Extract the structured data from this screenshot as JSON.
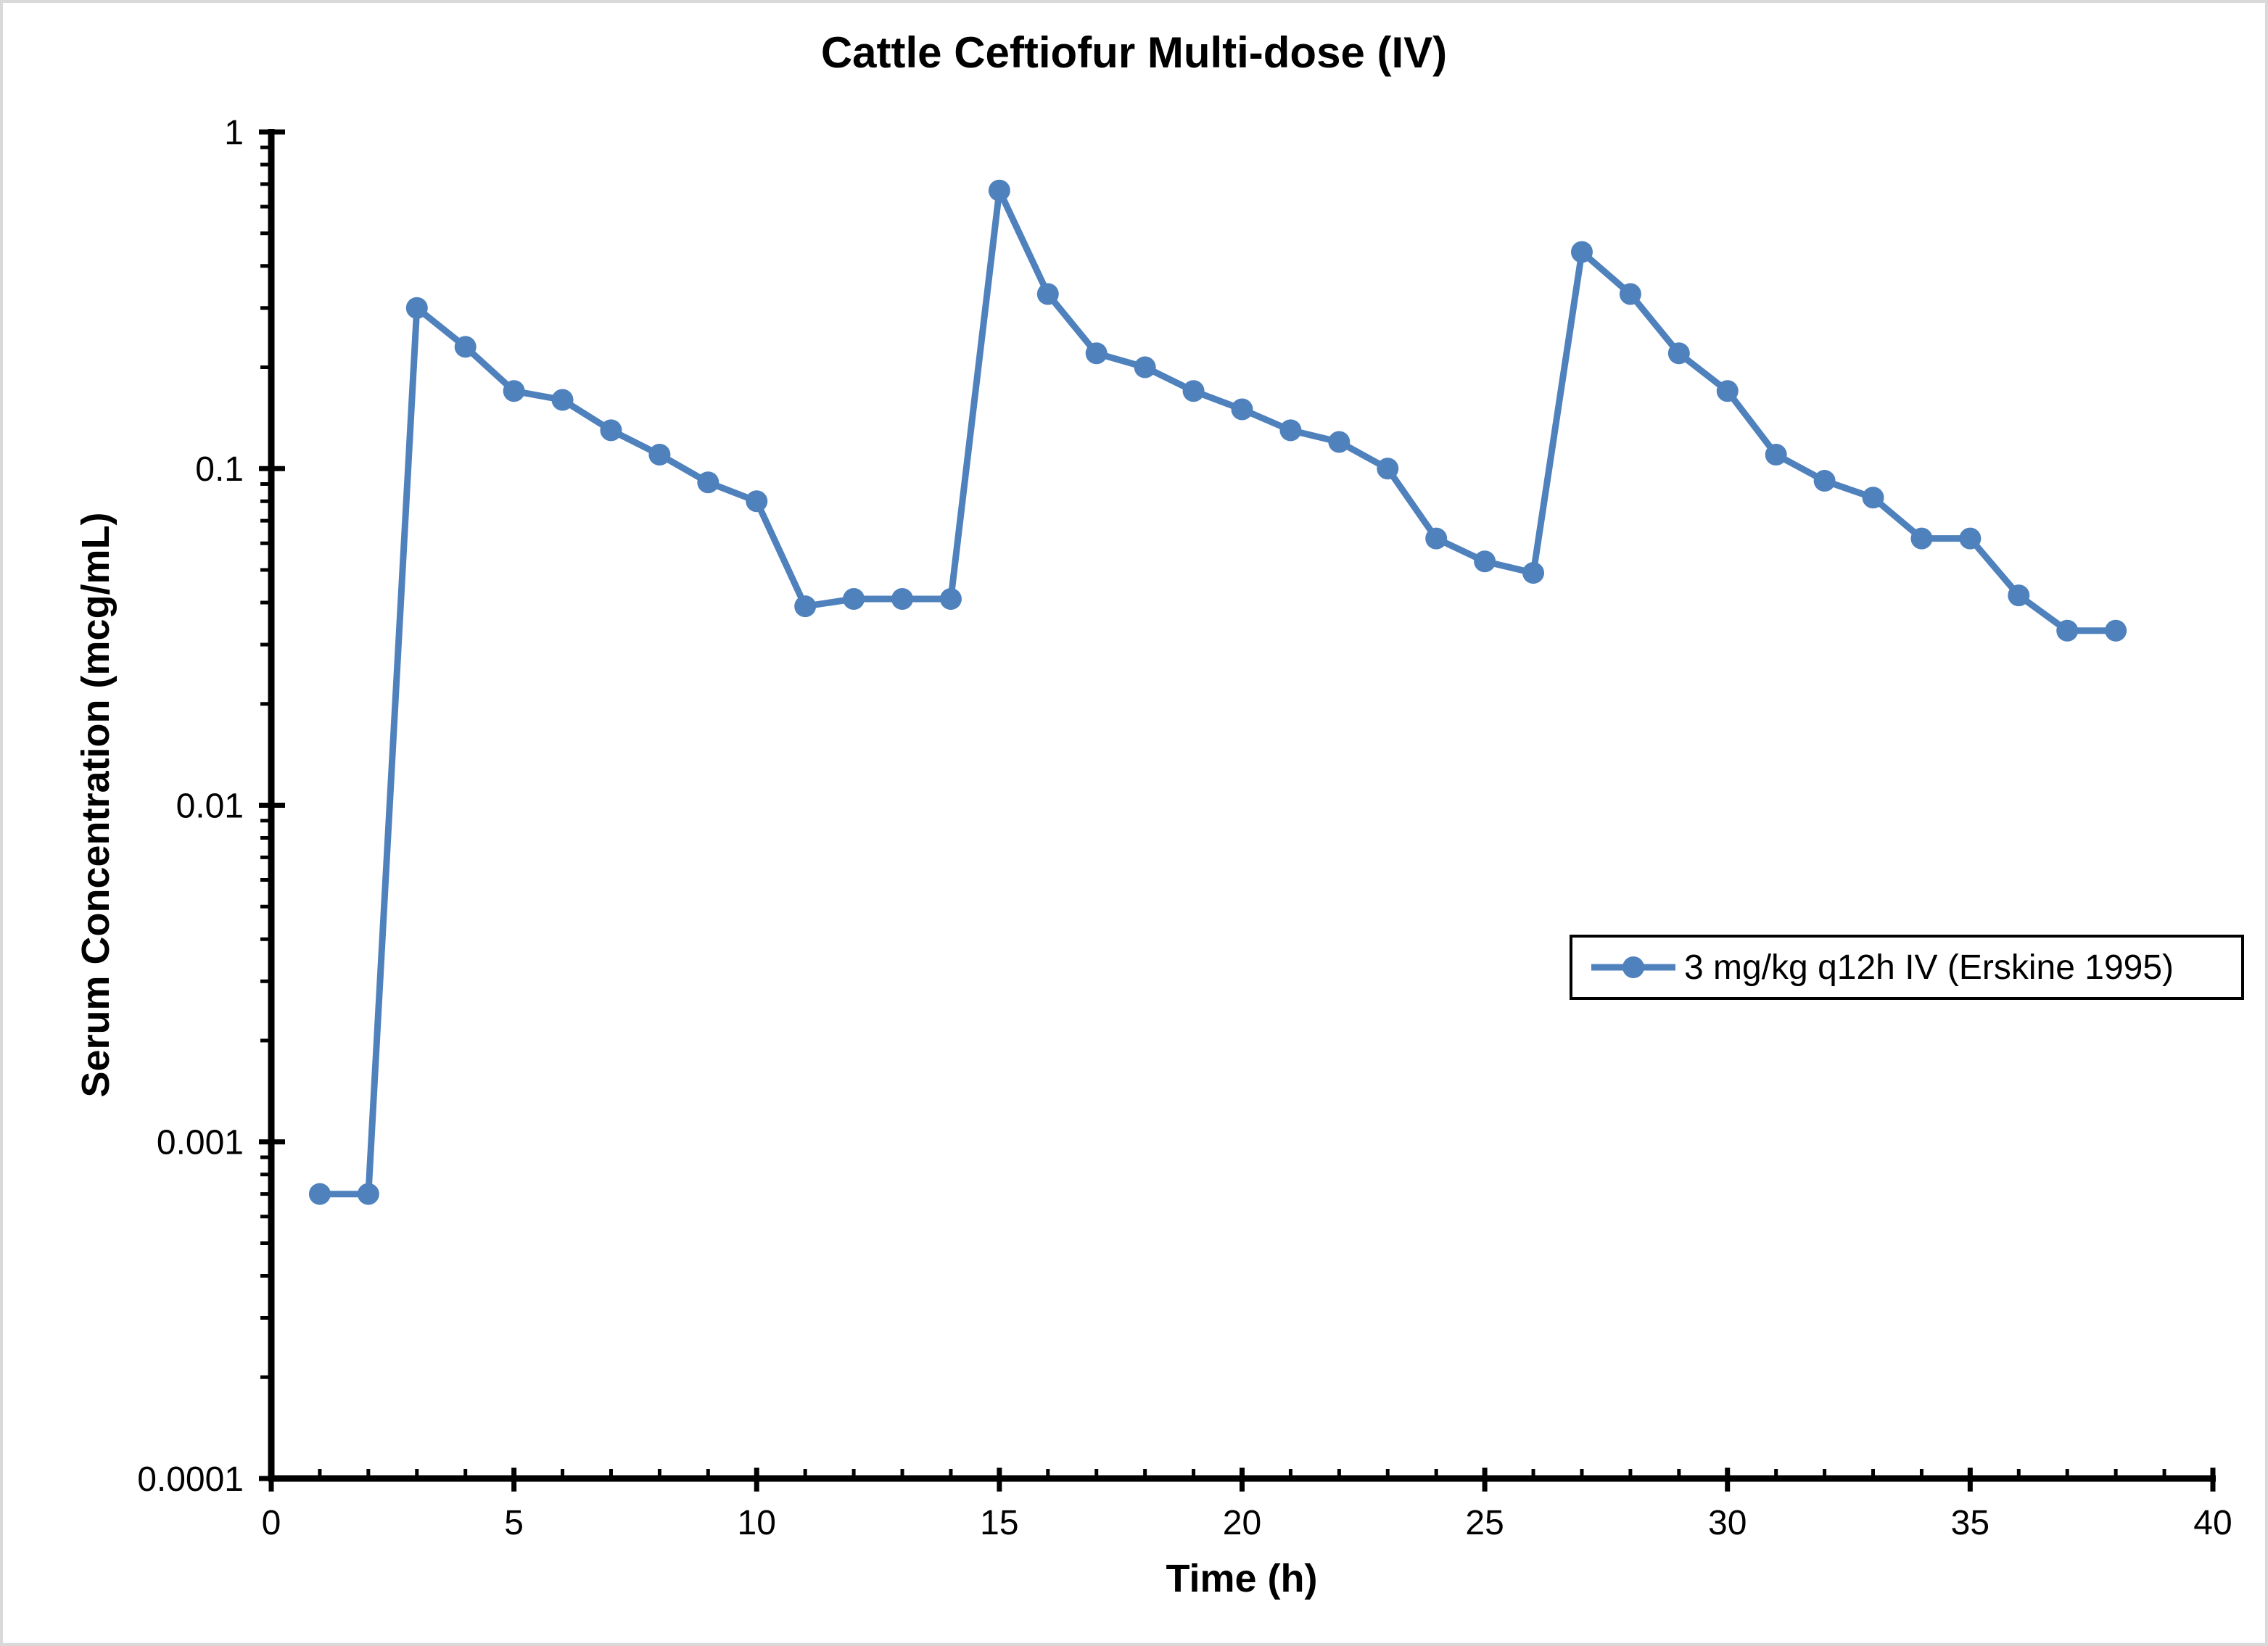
{
  "page": {
    "background_color": "#ffffff",
    "frame_border_color": "#d9d9d9"
  },
  "chart_data": {
    "type": "line",
    "title": "Cattle Ceftiofur Multi-dose (IV)",
    "xlabel": "Time (h)",
    "ylabel": "Serum Concentration (mcg/mL)",
    "grid": false,
    "x_axis": {
      "min": 0,
      "max": 40,
      "tick_values": [
        0,
        5,
        10,
        15,
        20,
        25,
        30,
        35,
        40
      ],
      "tick_labels": [
        "0",
        "5",
        "10",
        "15",
        "20",
        "25",
        "30",
        "35",
        "40"
      ],
      "minor_tick_interval": 1
    },
    "y_axis": {
      "scale": "log",
      "min": 0.0001,
      "max": 1,
      "tick_values": [
        1,
        0.1,
        0.01,
        0.001,
        0.0001
      ],
      "tick_labels": [
        "1",
        "0.1",
        "0.01",
        "0.001",
        "0.0001"
      ],
      "minor_ticks": "log sub-decade 2-9"
    },
    "legend": {
      "position": "middle-right",
      "border": true
    },
    "series": [
      {
        "name": "3 mg/kg q12h IV (Erskine 1995)",
        "color": "#4F81BD",
        "marker": "circle",
        "x": [
          1,
          2,
          3,
          4,
          5,
          6,
          7,
          8,
          9,
          10,
          11,
          12,
          13,
          14,
          15,
          16,
          17,
          18,
          19,
          20,
          21,
          22,
          23,
          24,
          25,
          26,
          27,
          28,
          29,
          30,
          31,
          32,
          33,
          34,
          35,
          36,
          37,
          38
        ],
        "y": [
          0.0007,
          0.0007,
          0.3,
          0.23,
          0.17,
          0.16,
          0.13,
          0.11,
          0.091,
          0.08,
          0.039,
          0.041,
          0.041,
          0.041,
          0.67,
          0.33,
          0.22,
          0.2,
          0.17,
          0.15,
          0.13,
          0.12,
          0.1,
          0.062,
          0.053,
          0.049,
          0.44,
          0.33,
          0.22,
          0.17,
          0.11,
          0.092,
          0.082,
          0.062,
          0.062,
          0.042,
          0.033,
          0.033
        ]
      }
    ]
  }
}
